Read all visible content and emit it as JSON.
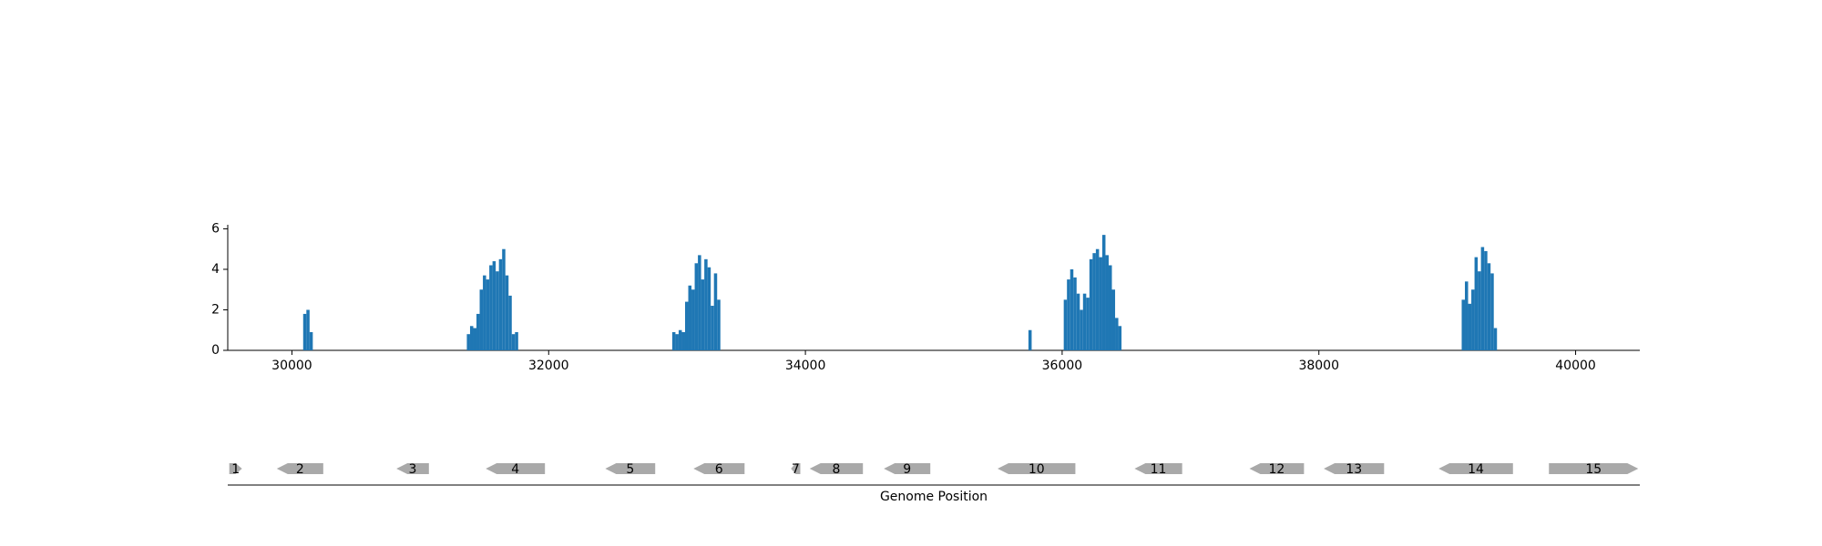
{
  "chart_data": {
    "type": "bar",
    "color": "#1f77b4",
    "x": [
      30100,
      30125,
      30150,
      31375,
      31400,
      31425,
      31450,
      31475,
      31500,
      31525,
      31550,
      31575,
      31600,
      31625,
      31650,
      31675,
      31700,
      31725,
      31750,
      32975,
      33000,
      33025,
      33050,
      33075,
      33100,
      33125,
      33150,
      33175,
      33200,
      33225,
      33250,
      33275,
      33300,
      33325,
      35750,
      36025,
      36050,
      36075,
      36100,
      36125,
      36150,
      36175,
      36200,
      36225,
      36250,
      36275,
      36300,
      36325,
      36350,
      36375,
      36400,
      36425,
      36450,
      39125,
      39150,
      39175,
      39200,
      39225,
      39250,
      39275,
      39300,
      39325,
      39350,
      39375
    ],
    "values": [
      1.8,
      2.0,
      0.9,
      0.8,
      1.2,
      1.1,
      1.8,
      3.0,
      3.7,
      3.5,
      4.2,
      4.4,
      3.9,
      4.5,
      5.0,
      3.7,
      2.7,
      0.8,
      0.9,
      0.9,
      0.8,
      1.0,
      0.9,
      2.4,
      3.2,
      3.0,
      4.3,
      4.7,
      3.5,
      4.5,
      4.1,
      2.2,
      3.8,
      2.5,
      1.0,
      2.5,
      3.5,
      4.0,
      3.6,
      2.8,
      2.0,
      2.8,
      2.6,
      4.5,
      4.8,
      5.0,
      4.6,
      5.7,
      4.7,
      4.2,
      3.0,
      1.6,
      1.2,
      2.5,
      3.4,
      2.3,
      3.0,
      4.6,
      3.9,
      5.1,
      4.9,
      4.3,
      3.8,
      1.1
    ],
    "xlim": [
      29500,
      40500
    ],
    "xticks": [
      30000,
      32000,
      34000,
      36000,
      38000,
      40000
    ],
    "ylim": [
      0,
      6.2
    ],
    "yticks": [
      0,
      2,
      4,
      6
    ],
    "xlabel": "Genome Position",
    "gene_color": "#a9a9a9",
    "genes": [
      {
        "label": "1",
        "start": 29512,
        "end": 29611,
        "strand": "+"
      },
      {
        "label": "2",
        "start": 29882,
        "end": 30244,
        "strand": "-"
      },
      {
        "label": "3",
        "start": 30814,
        "end": 31067,
        "strand": "-"
      },
      {
        "label": "4",
        "start": 31510,
        "end": 31971,
        "strand": "-"
      },
      {
        "label": "5",
        "start": 32441,
        "end": 32830,
        "strand": "-"
      },
      {
        "label": "6",
        "start": 33128,
        "end": 33526,
        "strand": "-"
      },
      {
        "label": "7",
        "start": 33888,
        "end": 33960,
        "strand": "-"
      },
      {
        "label": "8",
        "start": 34033,
        "end": 34448,
        "strand": "-"
      },
      {
        "label": "9",
        "start": 34611,
        "end": 34973,
        "strand": "-"
      },
      {
        "label": "10",
        "start": 35497,
        "end": 36103,
        "strand": "-"
      },
      {
        "label": "11",
        "start": 36564,
        "end": 36935,
        "strand": "-"
      },
      {
        "label": "12",
        "start": 37459,
        "end": 37884,
        "strand": "-"
      },
      {
        "label": "13",
        "start": 38038,
        "end": 38508,
        "strand": "-"
      },
      {
        "label": "14",
        "start": 38933,
        "end": 39512,
        "strand": "-"
      },
      {
        "label": "15",
        "start": 39792,
        "end": 40488,
        "strand": "+"
      }
    ]
  }
}
